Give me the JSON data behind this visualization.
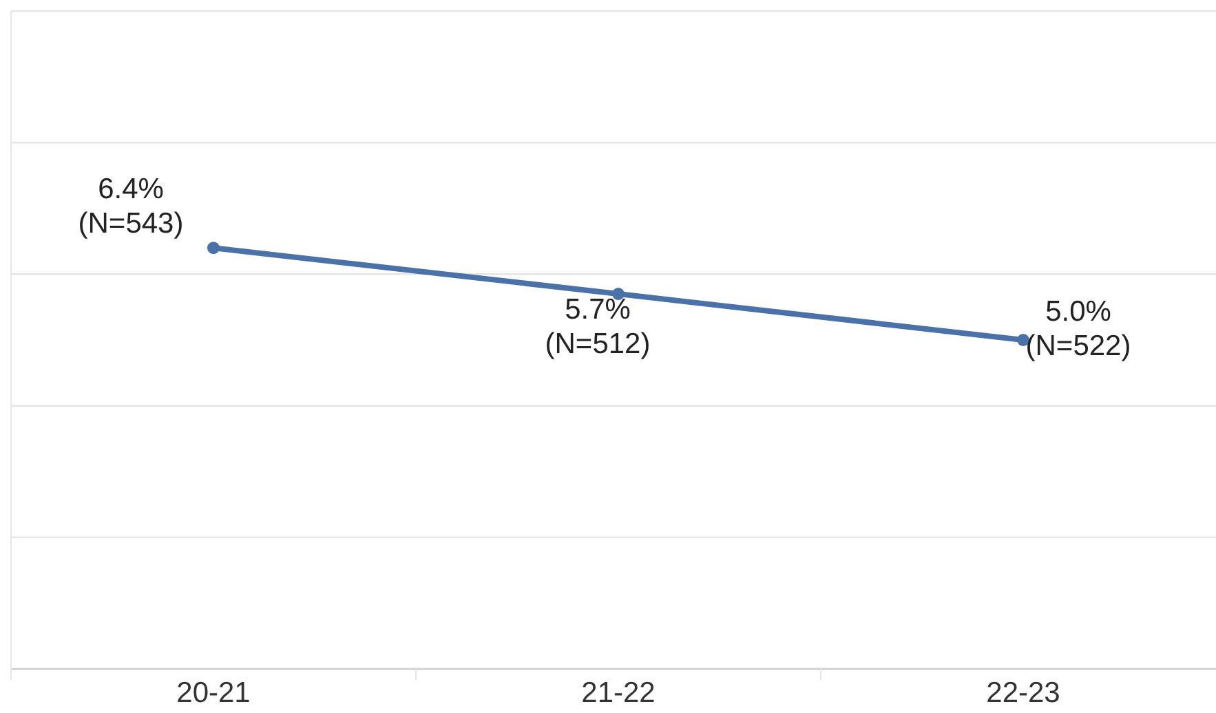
{
  "chart_data": {
    "type": "line",
    "categories": [
      "20-21",
      "21-22",
      "22-23"
    ],
    "series": [
      {
        "color": "#4a72a8",
        "values": [
          6.4,
          5.7,
          5.0
        ],
        "value_labels": [
          "6.4%\n(N=543)",
          "5.7%\n(N=512)",
          "5.0%\n(N=522)"
        ]
      }
    ],
    "ylim": [
      0,
      10
    ],
    "yticks": [
      {
        "value": 0,
        "label": null
      },
      {
        "value": 2,
        "label": null
      },
      {
        "value": 4,
        "label": null
      },
      {
        "value": 6,
        "label": null
      },
      {
        "value": 8,
        "label": null
      },
      {
        "value": 10,
        "label": null
      }
    ],
    "grid": "y",
    "tick_labels": "x",
    "marker": "circle",
    "line_style": "solid"
  }
}
